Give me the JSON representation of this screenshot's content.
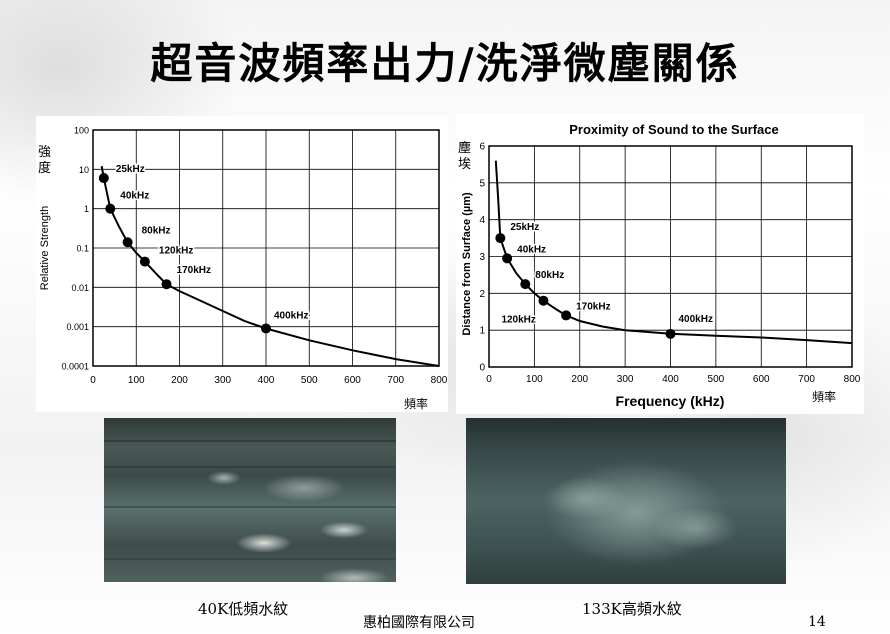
{
  "slide": {
    "title": "超音波頻率出力/洗淨微塵關係",
    "company": "惠柏國際有限公司",
    "page_number": "14",
    "photo_left_caption": "40K低頻水紋",
    "photo_right_caption": "133K高頻水紋"
  },
  "chart_data": [
    {
      "type": "line",
      "title": "",
      "ylabel": "Relative Strength",
      "ylabel_cn": "強度",
      "xlabel": "",
      "xlabel_cn": "頻率",
      "scale_y": "log",
      "grid": true,
      "xlim": [
        0,
        800
      ],
      "ylim": [
        0.0001,
        100
      ],
      "x_ticks": [
        "0",
        "100",
        "200",
        "300",
        "400",
        "500",
        "600",
        "700",
        "800"
      ],
      "y_ticks": [
        "0.0001",
        "0.001",
        "0.01",
        "0.1",
        "1",
        "10",
        "100"
      ],
      "series": [
        {
          "points": [
            {
              "x": 25,
              "y": 6.0,
              "label": "25kHz"
            },
            {
              "x": 40,
              "y": 1.0,
              "label": "40kHz"
            },
            {
              "x": 80,
              "y": 0.14,
              "label": "80kHz"
            },
            {
              "x": 120,
              "y": 0.045,
              "label": "120kHz"
            },
            {
              "x": 170,
              "y": 0.012,
              "label": "170kHz"
            },
            {
              "x": 400,
              "y": 0.0009,
              "label": "400kHz"
            }
          ],
          "curve": [
            [
              20,
              12
            ],
            [
              25,
              6.0
            ],
            [
              40,
              1.0
            ],
            [
              60,
              0.35
            ],
            [
              80,
              0.14
            ],
            [
              100,
              0.075
            ],
            [
              120,
              0.045
            ],
            [
              150,
              0.02
            ],
            [
              170,
              0.012
            ],
            [
              200,
              0.008
            ],
            [
              250,
              0.0045
            ],
            [
              300,
              0.0025
            ],
            [
              350,
              0.0014
            ],
            [
              400,
              0.0009
            ],
            [
              500,
              0.00045
            ],
            [
              600,
              0.00025
            ],
            [
              700,
              0.00015
            ],
            [
              800,
              0.0001
            ]
          ]
        }
      ]
    },
    {
      "type": "line",
      "title": "Proximity of Sound to the Surface",
      "ylabel": "Distance from Surface (µm)",
      "ylabel_cn": "塵埃",
      "xlabel": "Frequency (kHz)",
      "xlabel_cn": "頻率",
      "grid": true,
      "xlim": [
        0,
        800
      ],
      "ylim": [
        0,
        6
      ],
      "x_ticks": [
        "0",
        "100",
        "200",
        "300",
        "400",
        "500",
        "600",
        "700",
        "800"
      ],
      "y_ticks": [
        "0",
        "1",
        "2",
        "3",
        "4",
        "5",
        "6"
      ],
      "series": [
        {
          "points": [
            {
              "x": 25,
              "y": 3.5,
              "label": "25kHz"
            },
            {
              "x": 40,
              "y": 2.95,
              "label": "40kHz"
            },
            {
              "x": 80,
              "y": 2.25,
              "label": "80kHz"
            },
            {
              "x": 120,
              "y": 1.8,
              "label": "120kHz"
            },
            {
              "x": 170,
              "y": 1.4,
              "label": "170kHz"
            },
            {
              "x": 400,
              "y": 0.9,
              "label": "400kHz"
            }
          ],
          "curve": [
            [
              15,
              5.6
            ],
            [
              20,
              4.6
            ],
            [
              25,
              3.5
            ],
            [
              40,
              2.95
            ],
            [
              60,
              2.55
            ],
            [
              80,
              2.25
            ],
            [
              100,
              2.0
            ],
            [
              120,
              1.8
            ],
            [
              150,
              1.55
            ],
            [
              170,
              1.4
            ],
            [
              200,
              1.25
            ],
            [
              250,
              1.1
            ],
            [
              300,
              1.0
            ],
            [
              400,
              0.9
            ],
            [
              500,
              0.85
            ],
            [
              600,
              0.8
            ],
            [
              700,
              0.73
            ],
            [
              800,
              0.65
            ]
          ]
        }
      ]
    }
  ]
}
